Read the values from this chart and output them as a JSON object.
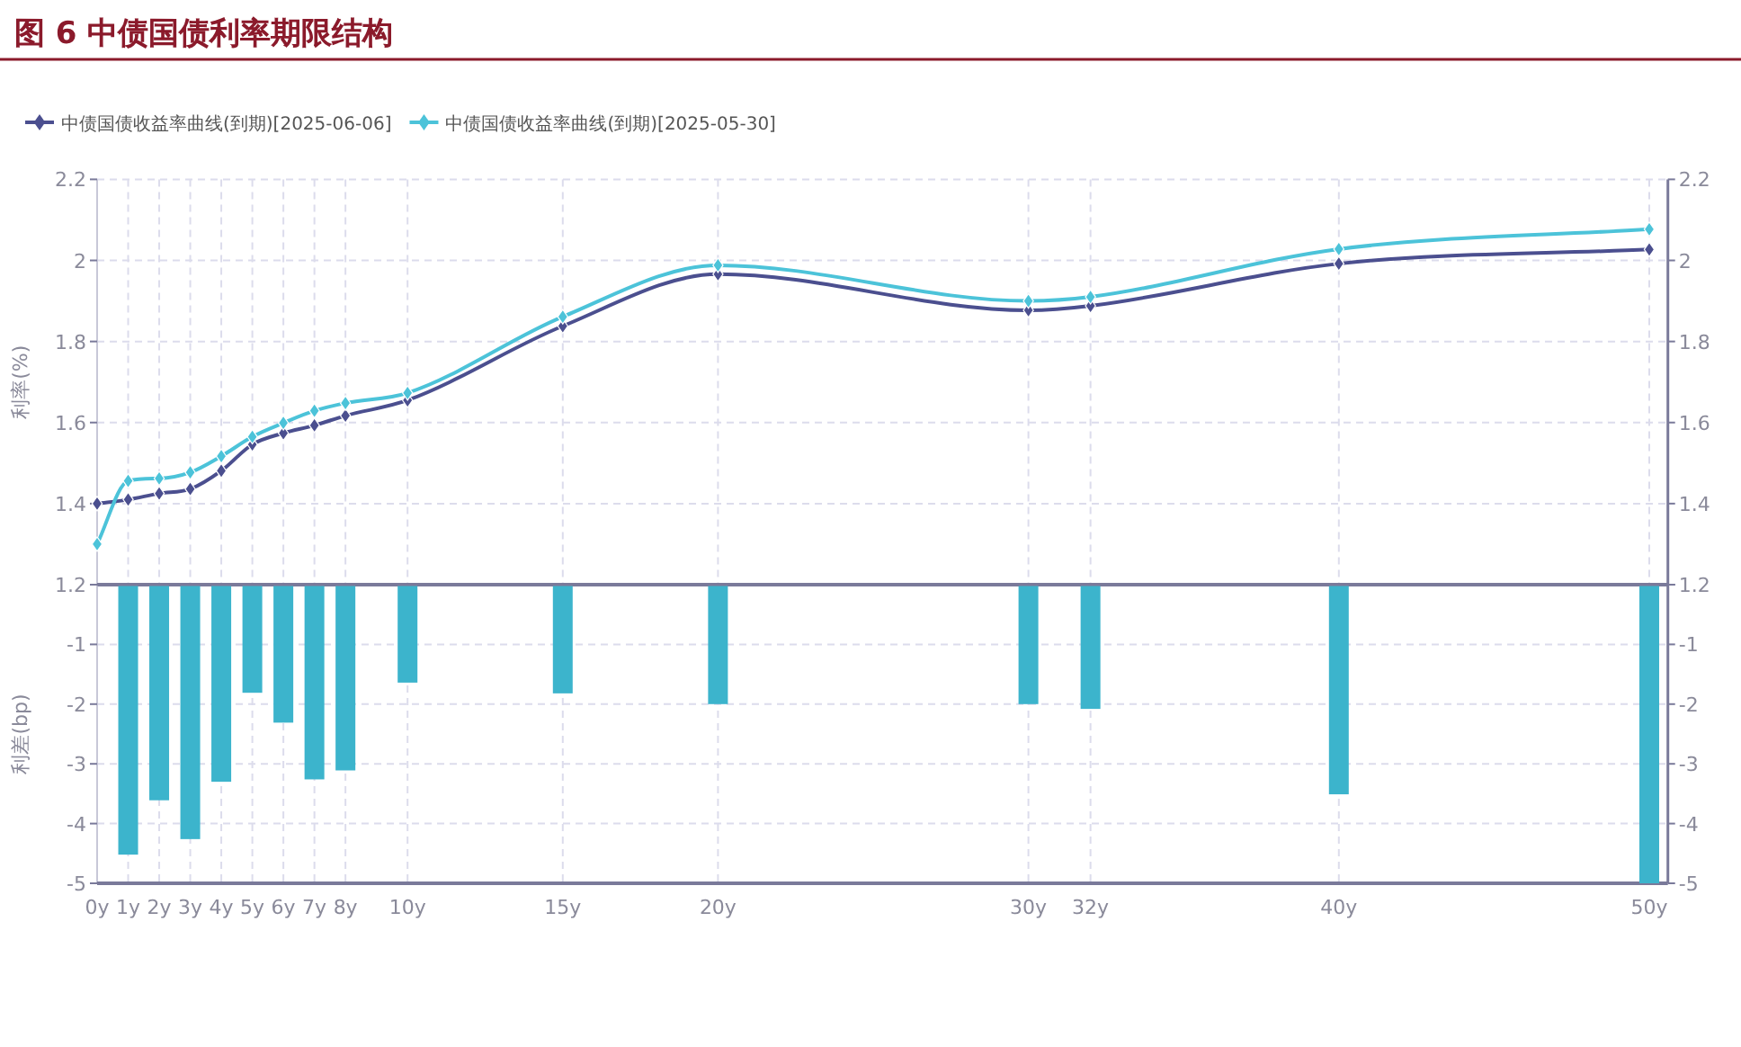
{
  "chart_data": [
    {
      "type": "line",
      "title": "图 6 中债国债利率期限结构",
      "ylabel": "利率(%)",
      "legend": "top left",
      "marker": "diamond",
      "grid": true,
      "tick_labels": "y",
      "xlim": [
        0,
        50.6
      ],
      "xticks": [
        0,
        1,
        2,
        3,
        4,
        5,
        6,
        7,
        8,
        10,
        15,
        20,
        30,
        32,
        40,
        50
      ],
      "ylim": [
        1.2,
        2.2
      ],
      "yticks": [
        1.2,
        1.4,
        1.6,
        1.8,
        2,
        2.2
      ],
      "y2lim": [
        1.2,
        2.2
      ],
      "y2ticks": [
        1.2,
        1.4,
        1.6,
        1.8,
        2,
        2.2
      ],
      "series": [
        {
          "name": "中债国债收益率曲线(到期)[2025-06-06]",
          "color": "#4b4f8f",
          "x": [
            0,
            1,
            2,
            3,
            4,
            5,
            6,
            7,
            8,
            10,
            15,
            20,
            30,
            32,
            40,
            50
          ],
          "values": [
            1.4,
            1.41,
            1.425,
            1.436,
            1.481,
            1.546,
            1.574,
            1.593,
            1.617,
            1.655,
            1.838,
            1.966,
            1.877,
            1.888,
            1.992,
            2.027
          ]
        },
        {
          "name": "中债国债收益率曲线(到期)[2025-05-30]",
          "color": "#4cc3d9",
          "x": [
            0,
            1,
            2,
            3,
            4,
            5,
            6,
            7,
            8,
            10,
            15,
            20,
            30,
            32,
            40,
            50
          ],
          "values": [
            1.3,
            1.456,
            1.462,
            1.477,
            1.517,
            1.565,
            1.599,
            1.629,
            1.648,
            1.673,
            1.861,
            1.988,
            1.9,
            1.91,
            2.028,
            2.077
          ]
        }
      ]
    },
    {
      "type": "bar",
      "ylabel": "利差(bp)",
      "grid": true,
      "xlim": [
        0,
        50.6
      ],
      "xticks": [
        {
          "value": 0,
          "label": "0y"
        },
        {
          "value": 1,
          "label": "1y"
        },
        {
          "value": 2,
          "label": "2y"
        },
        {
          "value": 3,
          "label": "3y"
        },
        {
          "value": 4,
          "label": "4y"
        },
        {
          "value": 5,
          "label": "5y"
        },
        {
          "value": 6,
          "label": "6y"
        },
        {
          "value": 7,
          "label": "7y"
        },
        {
          "value": 8,
          "label": "8y"
        },
        {
          "value": 10,
          "label": "10y"
        },
        {
          "value": 15,
          "label": "15y"
        },
        {
          "value": 20,
          "label": "20y"
        },
        {
          "value": 30,
          "label": "30y"
        },
        {
          "value": 32,
          "label": "32y"
        },
        {
          "value": 40,
          "label": "40y"
        },
        {
          "value": 50,
          "label": "50y"
        }
      ],
      "x": [
        1,
        2,
        3,
        4,
        5,
        6,
        7,
        8,
        10,
        15,
        20,
        30,
        32,
        40,
        50
      ],
      "values": [
        -4.52,
        -3.61,
        -4.26,
        -3.3,
        -1.81,
        -2.31,
        -3.26,
        -3.11,
        -1.64,
        -1.82,
        -2.0,
        -2.0,
        -2.08,
        -3.51,
        -5.0
      ],
      "color": "#3cb4cc",
      "ylim": [
        -5,
        0
      ],
      "yticks": [
        {
          "value": 0,
          "label": null
        },
        -1,
        -2,
        -3,
        -4,
        -5
      ],
      "y2lim": [
        -5,
        0
      ],
      "y2ticks": [
        {
          "value": 0,
          "label": null
        },
        -1,
        -2,
        -3,
        -4,
        -5
      ]
    }
  ]
}
